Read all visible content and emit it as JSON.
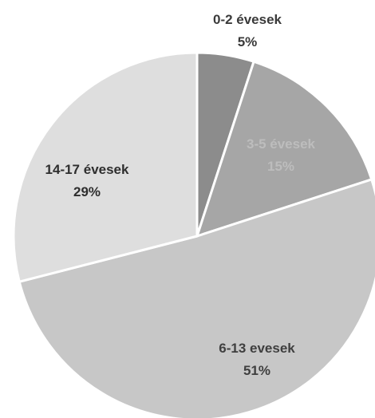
{
  "chart_data": {
    "type": "pie",
    "title": "",
    "slices": [
      {
        "name": "0-2 évesek",
        "value_label": "5%",
        "value": 5,
        "color": "#8c8c8c",
        "label_color": "#3a3a3a"
      },
      {
        "name": "3-5 évesek",
        "value_label": "15%",
        "value": 15,
        "color": "#a6a6a6",
        "label_color": "#bdbdbd"
      },
      {
        "name": "6-13 evesek",
        "value_label": "51%",
        "value": 51,
        "color": "#c7c7c7",
        "label_color": "#3f3f3f"
      },
      {
        "name": "14-17 évesek",
        "value_label": "29%",
        "value": 29,
        "color": "#dedede",
        "label_color": "#2e2e2e"
      }
    ],
    "legend": "none",
    "start_angle": "top, clockwise"
  }
}
